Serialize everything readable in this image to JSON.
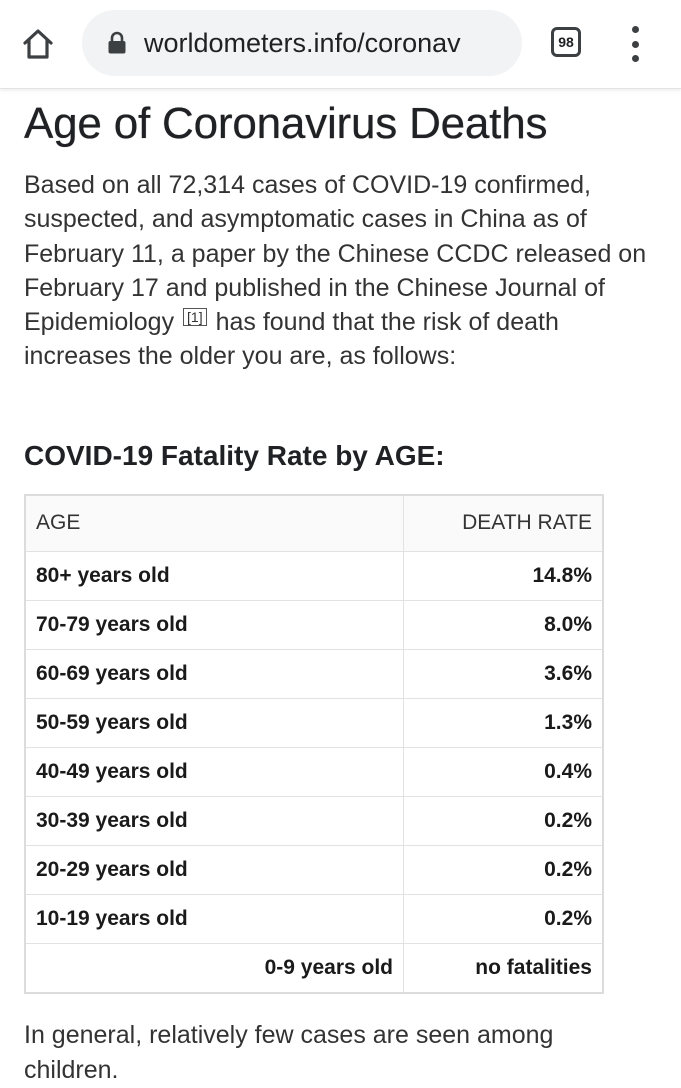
{
  "browser": {
    "url": "worldometers.info/coronav",
    "tab_count": "98"
  },
  "page": {
    "title": "Age of Coronavirus Deaths",
    "intro_before_ref": "Based on all 72,314 cases of COVID-19 confirmed, suspected, and asymptomatic cases in China as of February 11, a paper by the Chinese CCDC released on February 17 and published in the Chinese Journal of Epidemiology",
    "ref_label": "[1]",
    "intro_after_ref": "has found that the risk of death increases the older you are, as follows:",
    "section_heading": "COVID-19 Fatality Rate by AGE:",
    "closing": "In general, relatively few cases are seen among children."
  },
  "table": {
    "headers": {
      "age": "AGE",
      "rate": "DEATH RATE"
    },
    "rows": [
      {
        "age": "80+ years old",
        "rate": "14.8%"
      },
      {
        "age": "70-79 years old",
        "rate": "8.0%"
      },
      {
        "age": "60-69 years old",
        "rate": "3.6%"
      },
      {
        "age": "50-59 years old",
        "rate": "1.3%"
      },
      {
        "age": "40-49 years old",
        "rate": "0.4%"
      },
      {
        "age": "30-39 years old",
        "rate": "0.2%"
      },
      {
        "age": "20-29 years old",
        "rate": "0.2%"
      },
      {
        "age": "10-19 years old",
        "rate": "0.2%"
      },
      {
        "age": "0-9 years old",
        "rate": "no fatalities"
      }
    ]
  }
}
